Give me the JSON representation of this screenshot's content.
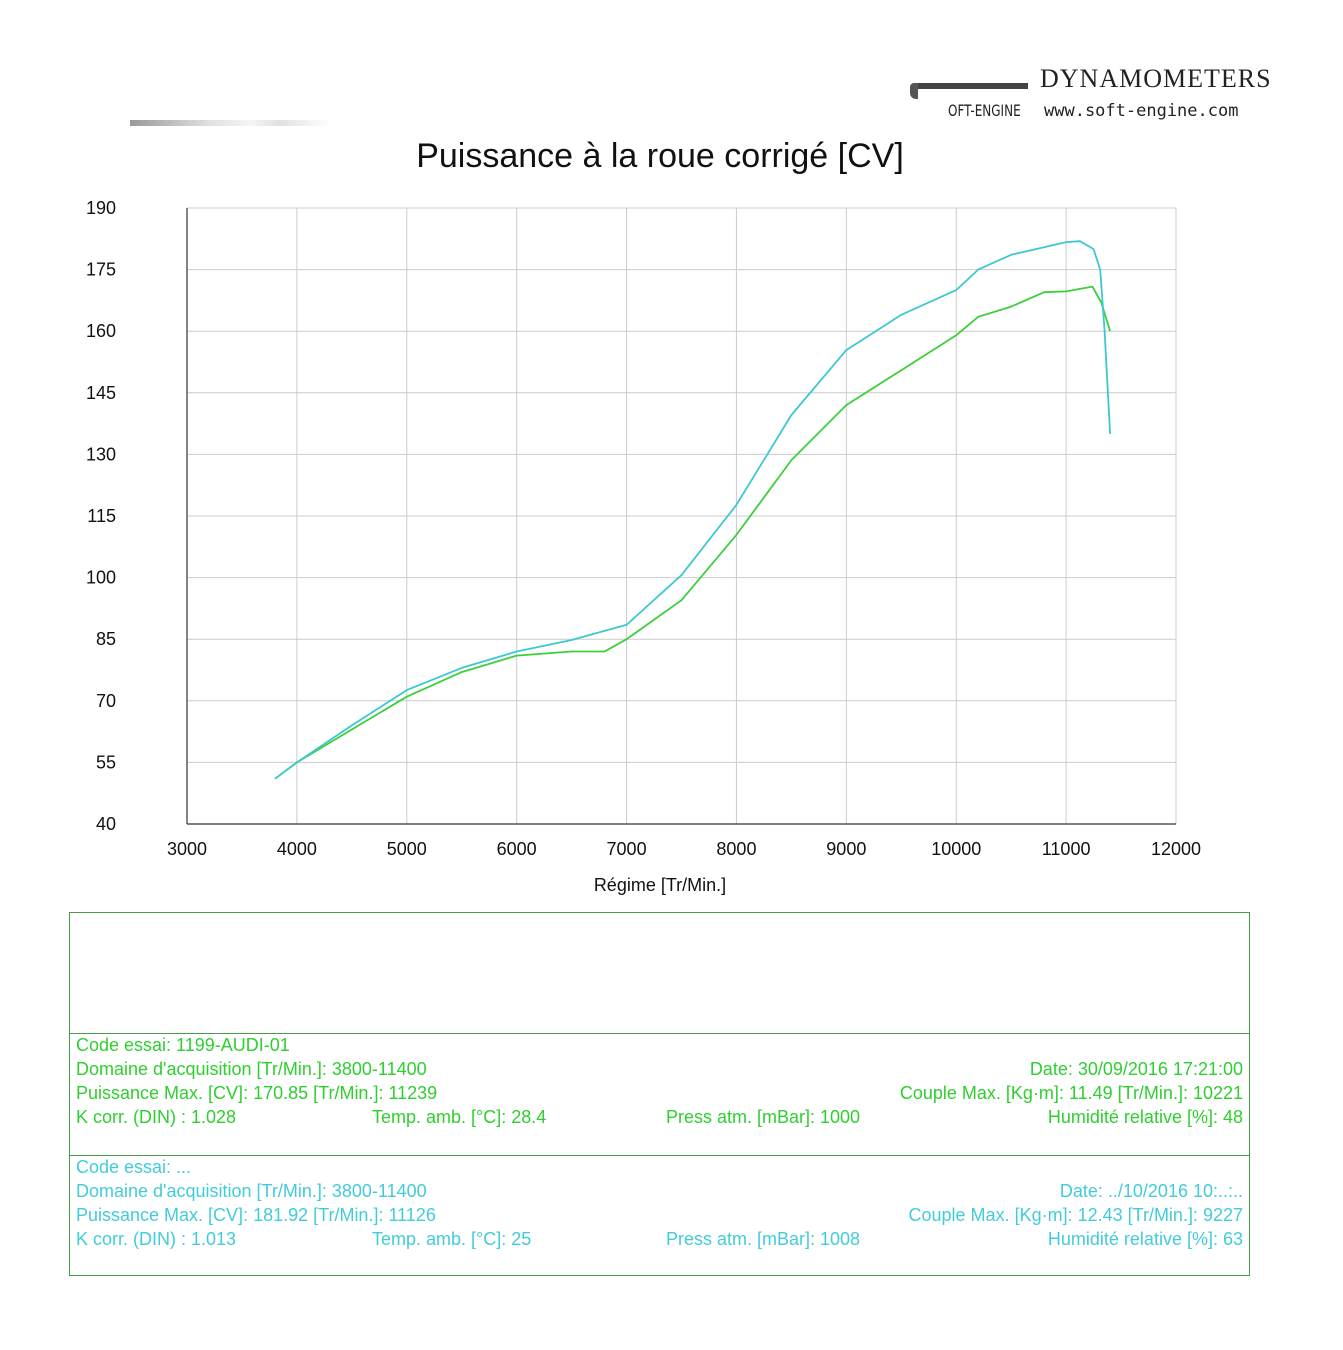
{
  "header": {
    "brand": "DYNAMOMETERS",
    "logo_text": "OFT-ENGINE",
    "url": "www.soft-engine.com"
  },
  "chart_data": {
    "type": "line",
    "title": "Puissance à la roue corrigé [CV]",
    "xlabel": "Régime [Tr/Min.]",
    "ylabel": "",
    "xlim": [
      3000,
      12000
    ],
    "ylim": [
      40,
      190
    ],
    "xticks": [
      3000,
      4000,
      5000,
      6000,
      7000,
      8000,
      9000,
      10000,
      11000,
      12000
    ],
    "yticks": [
      190,
      175,
      160,
      145,
      130,
      115,
      100,
      85,
      70,
      55,
      40
    ],
    "grid": true,
    "series": [
      {
        "color": "#3ccf3c",
        "points": [
          [
            3800,
            51
          ],
          [
            4000,
            55
          ],
          [
            4500,
            63
          ],
          [
            5000,
            71
          ],
          [
            5500,
            77
          ],
          [
            6000,
            81
          ],
          [
            6500,
            82
          ],
          [
            6800,
            82
          ],
          [
            7000,
            85
          ],
          [
            7500,
            94.5
          ],
          [
            8000,
            110.4
          ],
          [
            8500,
            128.6
          ],
          [
            9000,
            142
          ],
          [
            9500,
            150.5
          ],
          [
            10000,
            159
          ],
          [
            10200,
            163.5
          ],
          [
            10500,
            166
          ],
          [
            10800,
            169.5
          ],
          [
            11000,
            169.7
          ],
          [
            11239,
            170.85
          ],
          [
            11320,
            167
          ],
          [
            11400,
            160
          ]
        ]
      },
      {
        "color": "#3cc8d0",
        "points": [
          [
            3800,
            51
          ],
          [
            4000,
            55
          ],
          [
            4500,
            64
          ],
          [
            5000,
            72.6
          ],
          [
            5500,
            78
          ],
          [
            6000,
            82
          ],
          [
            6500,
            84.8
          ],
          [
            7000,
            88.5
          ],
          [
            7500,
            100.6
          ],
          [
            8000,
            117.7
          ],
          [
            8500,
            139.6
          ],
          [
            9000,
            155.4
          ],
          [
            9500,
            164
          ],
          [
            10000,
            170
          ],
          [
            10200,
            175
          ],
          [
            10500,
            178.6
          ],
          [
            11000,
            181.7
          ],
          [
            11126,
            181.92
          ],
          [
            11250,
            180
          ],
          [
            11310,
            175
          ],
          [
            11350,
            160
          ],
          [
            11400,
            135
          ]
        ]
      }
    ]
  },
  "run1": {
    "code": "Code essai: 1199-AUDI-01",
    "domain": "Domaine d'acquisition [Tr/Min.]: 3800-11400",
    "date": "Date: 30/09/2016   17:21:00",
    "power": "Puissance Max. [CV]: 170.85   [Tr/Min.]: 11239",
    "torque": "Couple Max. [Kg·m]: 11.49   [Tr/Min.]: 10221",
    "kcorr": "K corr. (DIN) : 1.028",
    "temp": "Temp. amb. [°C]: 28.4",
    "press": "Press atm. [mBar]: 1000",
    "humidity": "Humidité relative [%]: 48"
  },
  "run2": {
    "code": "Code essai: ...",
    "domain": "Domaine d'acquisition [Tr/Min.]: 3800-11400",
    "date": "Date: ../10/2016   10:..:..",
    "power": "Puissance Max. [CV]: 181.92   [Tr/Min.]: 11126",
    "torque": "Couple Max. [Kg·m]: 12.43   [Tr/Min.]: 9227",
    "kcorr": "K corr. (DIN) : 1.013",
    "temp": "Temp. amb. [°C]: 25",
    "press": "Press atm. [mBar]: 1008",
    "humidity": "Humidité relative [%]: 63"
  }
}
